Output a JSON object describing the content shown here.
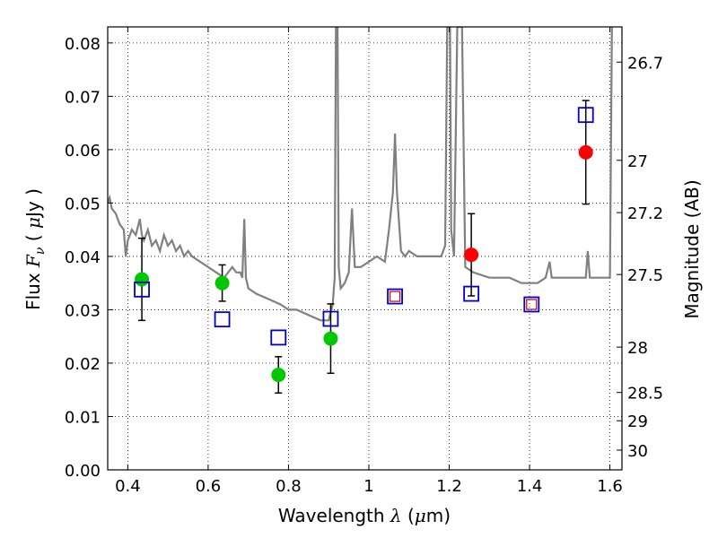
{
  "chart_data": {
    "type": "scatter",
    "title": "",
    "xlabel": "Wavelength  λ (μm)",
    "ylabel_left": "Flux  F_ν  ( μJy )",
    "ylabel_right": "Magnitude (AB)",
    "xlim": [
      0.35,
      1.63
    ],
    "ylim": [
      0.0,
      0.083
    ],
    "x_ticks": [
      0.4,
      0.6,
      0.8,
      1.0,
      1.2,
      1.4,
      1.6
    ],
    "x_tick_labels": [
      "0.4",
      "0.6",
      "0.8",
      "1",
      "1.2",
      "1.4",
      "1.6"
    ],
    "y_ticks": [
      0.0,
      0.01,
      0.02,
      0.03,
      0.04,
      0.05,
      0.06,
      0.07,
      0.08
    ],
    "y_tick_labels": [
      "0.00",
      "0.01",
      "0.02",
      "0.03",
      "0.04",
      "0.05",
      "0.06",
      "0.07",
      "0.08"
    ],
    "right_ticks": [
      {
        "label": "26.7",
        "flux": 0.0764
      },
      {
        "label": "27",
        "flux": 0.058
      },
      {
        "label": "27.2",
        "flux": 0.0482
      },
      {
        "label": "27.5",
        "flux": 0.0366
      },
      {
        "label": "28",
        "flux": 0.023
      },
      {
        "label": "28.5",
        "flux": 0.0145
      },
      {
        "label": "29",
        "flux": 0.0092
      },
      {
        "label": "30",
        "flux": 0.0037
      }
    ],
    "grid": true,
    "colors": {
      "observed_green": "#00c800",
      "observed_red": "#ff0000",
      "model_box": "#0000cc",
      "model_box_inner": "#cc0000",
      "sed": "#808080"
    },
    "series": [
      {
        "marker": "circle",
        "color": "#00c800",
        "points": [
          {
            "x": 0.435,
            "y": 0.0357,
            "err": 0.0077
          },
          {
            "x": 0.635,
            "y": 0.035,
            "err": 0.0034
          },
          {
            "x": 0.775,
            "y": 0.0178,
            "err": 0.0034
          },
          {
            "x": 0.905,
            "y": 0.0246,
            "err": 0.0065
          }
        ]
      },
      {
        "marker": "circle",
        "color": "#ff0000",
        "points": [
          {
            "x": 1.255,
            "y": 0.0403,
            "err": 0.0077
          },
          {
            "x": 1.54,
            "y": 0.0595,
            "err": 0.0097
          }
        ]
      },
      {
        "marker": "square",
        "color": "#0000cc",
        "points": [
          {
            "x": 0.435,
            "y": 0.0338
          },
          {
            "x": 0.635,
            "y": 0.0282
          },
          {
            "x": 0.775,
            "y": 0.0248
          },
          {
            "x": 0.905,
            "y": 0.0283
          },
          {
            "x": 1.255,
            "y": 0.033
          },
          {
            "x": 1.54,
            "y": 0.0665
          }
        ]
      },
      {
        "marker": "double-square",
        "color": "#0000cc",
        "inner_color": "#cc0000",
        "points": [
          {
            "x": 1.065,
            "y": 0.0325
          },
          {
            "x": 1.405,
            "y": 0.031
          }
        ]
      },
      {
        "marker": "line",
        "color": "#808080",
        "points": [
          [
            0.35,
            0.05
          ],
          [
            0.355,
            0.051
          ],
          [
            0.36,
            0.049
          ],
          [
            0.37,
            0.048
          ],
          [
            0.38,
            0.046
          ],
          [
            0.39,
            0.045
          ],
          [
            0.395,
            0.04
          ],
          [
            0.4,
            0.043
          ],
          [
            0.41,
            0.045
          ],
          [
            0.42,
            0.044
          ],
          [
            0.43,
            0.047
          ],
          [
            0.435,
            0.044
          ],
          [
            0.44,
            0.043
          ],
          [
            0.45,
            0.045
          ],
          [
            0.46,
            0.042
          ],
          [
            0.47,
            0.043
          ],
          [
            0.48,
            0.041
          ],
          [
            0.49,
            0.044
          ],
          [
            0.5,
            0.042
          ],
          [
            0.51,
            0.043
          ],
          [
            0.52,
            0.041
          ],
          [
            0.53,
            0.042
          ],
          [
            0.54,
            0.04
          ],
          [
            0.55,
            0.041
          ],
          [
            0.56,
            0.04
          ],
          [
            0.58,
            0.039
          ],
          [
            0.6,
            0.038
          ],
          [
            0.62,
            0.037
          ],
          [
            0.64,
            0.036
          ],
          [
            0.66,
            0.038
          ],
          [
            0.67,
            0.037
          ],
          [
            0.68,
            0.037
          ],
          [
            0.685,
            0.036
          ],
          [
            0.69,
            0.047
          ],
          [
            0.694,
            0.036
          ],
          [
            0.7,
            0.034
          ],
          [
            0.72,
            0.033
          ],
          [
            0.75,
            0.032
          ],
          [
            0.78,
            0.031
          ],
          [
            0.8,
            0.03
          ],
          [
            0.82,
            0.03
          ],
          [
            0.85,
            0.029
          ],
          [
            0.88,
            0.028
          ],
          [
            0.9,
            0.028
          ],
          [
            0.91,
            0.031
          ],
          [
            0.915,
            0.036
          ],
          [
            0.918,
            0.083
          ],
          [
            0.922,
            0.083
          ],
          [
            0.925,
            0.038
          ],
          [
            0.93,
            0.034
          ],
          [
            0.94,
            0.035
          ],
          [
            0.95,
            0.037
          ],
          [
            0.958,
            0.049
          ],
          [
            0.965,
            0.038
          ],
          [
            0.98,
            0.038
          ],
          [
            1.0,
            0.039
          ],
          [
            1.02,
            0.04
          ],
          [
            1.04,
            0.039
          ],
          [
            1.05,
            0.045
          ],
          [
            1.06,
            0.052
          ],
          [
            1.065,
            0.063
          ],
          [
            1.07,
            0.052
          ],
          [
            1.08,
            0.041
          ],
          [
            1.09,
            0.04
          ],
          [
            1.1,
            0.041
          ],
          [
            1.12,
            0.04
          ],
          [
            1.15,
            0.04
          ],
          [
            1.18,
            0.04
          ],
          [
            1.19,
            0.042
          ],
          [
            1.195,
            0.083
          ],
          [
            1.202,
            0.083
          ],
          [
            1.205,
            0.045
          ],
          [
            1.212,
            0.04
          ],
          [
            1.22,
            0.083
          ],
          [
            1.232,
            0.083
          ],
          [
            1.24,
            0.038
          ],
          [
            1.26,
            0.037
          ],
          [
            1.3,
            0.036
          ],
          [
            1.35,
            0.036
          ],
          [
            1.38,
            0.035
          ],
          [
            1.4,
            0.035
          ],
          [
            1.42,
            0.035
          ],
          [
            1.44,
            0.036
          ],
          [
            1.45,
            0.039
          ],
          [
            1.455,
            0.036
          ],
          [
            1.48,
            0.036
          ],
          [
            1.52,
            0.036
          ],
          [
            1.54,
            0.036
          ],
          [
            1.545,
            0.041
          ],
          [
            1.55,
            0.036
          ],
          [
            1.58,
            0.036
          ],
          [
            1.6,
            0.036
          ],
          [
            1.605,
            0.083
          ]
        ]
      }
    ]
  }
}
